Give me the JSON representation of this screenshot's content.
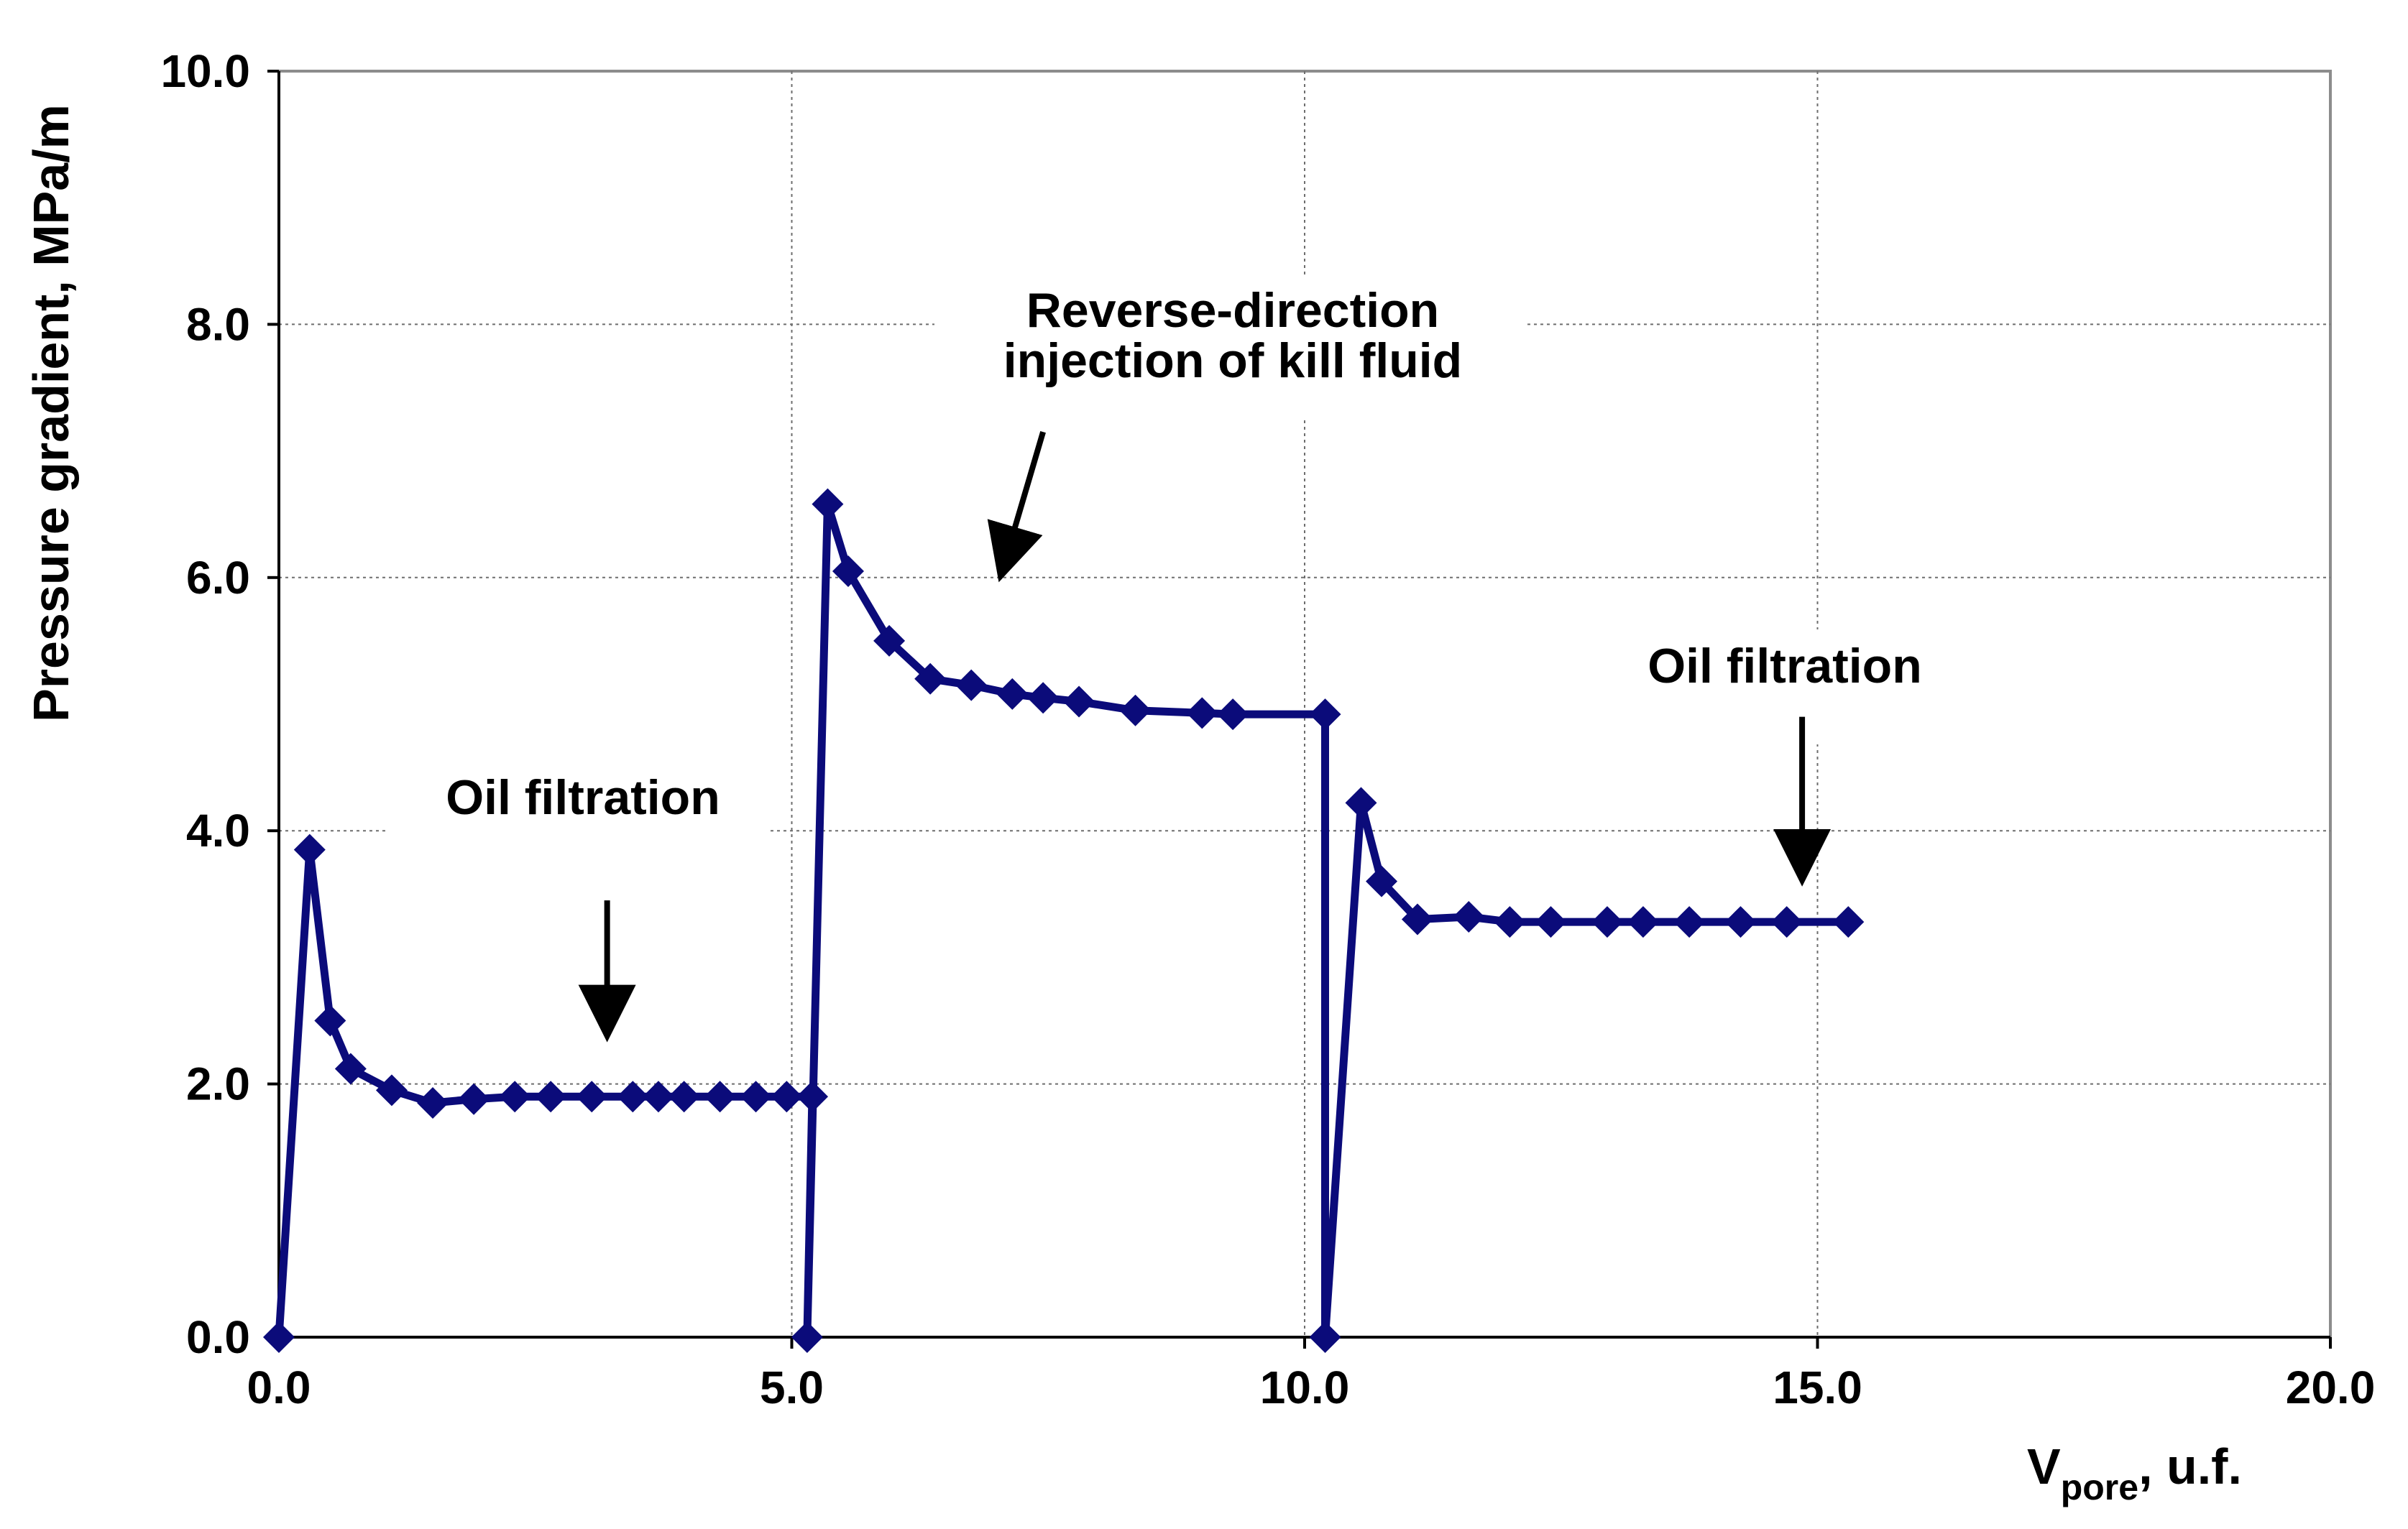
{
  "chart_data": {
    "type": "line",
    "title": "",
    "xlabel_main": "V",
    "xlabel_sub": "pore",
    "xlabel_rest": ", u.f.",
    "ylabel": "Pressure gradient, MPa/m",
    "xlim": [
      0,
      20
    ],
    "ylim": [
      0,
      10
    ],
    "x_ticks": [
      "0.0",
      "5.0",
      "10.0",
      "15.0",
      "20.0"
    ],
    "y_ticks": [
      "0.0",
      "2.0",
      "4.0",
      "6.0",
      "8.0",
      "10.0"
    ],
    "grid": true,
    "legend": "none",
    "series": [
      {
        "color": "#0b0b7a",
        "marker": "diamond",
        "x": [
          0.0,
          0.3,
          0.5,
          0.7,
          1.1,
          1.5,
          1.9,
          2.3,
          2.65,
          3.05,
          3.45,
          3.7,
          3.95,
          4.3,
          4.65,
          4.95,
          5.2,
          5.15,
          5.35,
          5.55,
          5.95,
          6.35,
          6.75,
          7.15,
          7.45,
          7.8,
          8.35,
          9.0,
          9.3,
          10.2,
          10.2,
          10.55,
          10.75,
          11.1,
          11.6,
          12.0,
          12.4,
          12.95,
          13.3,
          13.75,
          14.25,
          14.7,
          15.3
        ],
        "y": [
          0.0,
          3.85,
          2.5,
          2.12,
          1.95,
          1.85,
          1.88,
          1.9,
          1.9,
          1.9,
          1.9,
          1.9,
          1.9,
          1.9,
          1.9,
          1.9,
          1.9,
          0.0,
          6.58,
          6.05,
          5.5,
          5.2,
          5.15,
          5.08,
          5.05,
          5.02,
          4.95,
          4.93,
          4.92,
          4.92,
          0.0,
          4.22,
          3.6,
          3.3,
          3.32,
          3.28,
          3.28,
          3.28,
          3.28,
          3.28,
          3.28,
          3.28,
          3.28
        ]
      }
    ],
    "annotations": [
      {
        "lines": [
          "Oil filtration"
        ],
        "arrow_from": [
          3.2,
          3.45
        ],
        "arrow_to": [
          3.2,
          2.42
        ]
      },
      {
        "lines": [
          "Reverse-direction",
          "injection of kill fluid"
        ],
        "arrow_from": [
          7.45,
          7.15
        ],
        "arrow_to": [
          7.05,
          6.05
        ]
      },
      {
        "lines": [
          "Oil filtration"
        ],
        "arrow_from": [
          14.85,
          4.9
        ],
        "arrow_to": [
          14.85,
          3.65
        ]
      }
    ]
  }
}
